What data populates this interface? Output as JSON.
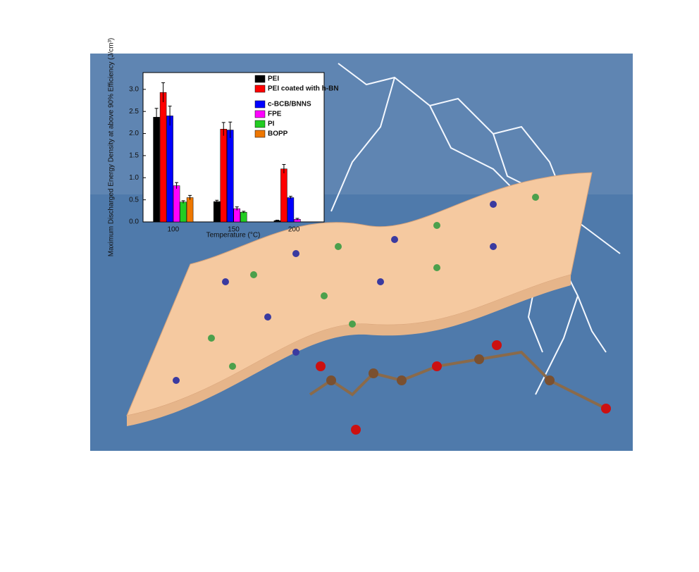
{
  "chart_data": {
    "type": "bar",
    "y_label": "Maximum Discharged Energy Density at above 90% Efficiency (J/cm³)",
    "x_label": "Temperature (°C)",
    "categories": [
      "100",
      "150",
      "200"
    ],
    "series": [
      {
        "name": "PEI",
        "color": "#000000",
        "values": [
          2.37,
          0.46,
          0.03
        ],
        "errors": [
          0.2,
          0.03,
          0.01
        ]
      },
      {
        "name": "PEI coated with h-BN",
        "color": "#ff0000",
        "values": [
          2.93,
          2.1,
          1.2
        ],
        "errors": [
          0.22,
          0.15,
          0.1
        ]
      },
      {
        "name": "c-BCB/BNNS",
        "color": "#0000ff",
        "values": [
          2.4,
          2.08,
          0.55
        ],
        "errors": [
          0.22,
          0.18,
          0.03
        ]
      },
      {
        "name": "FPE",
        "color": "#ff00ff",
        "values": [
          0.82,
          0.3,
          0.06
        ],
        "errors": [
          0.07,
          0.04,
          0.02
        ]
      },
      {
        "name": "PI",
        "color": "#22cc22",
        "values": [
          0.45,
          0.22,
          null
        ],
        "errors": [
          0.03,
          0.02,
          null
        ]
      },
      {
        "name": "BOPP",
        "color": "#ee7700",
        "values": [
          0.55,
          null,
          null
        ],
        "errors": [
          0.05,
          null,
          null
        ]
      }
    ],
    "ylim": [
      0,
      3.38
    ],
    "yticks": [
      {
        "value": 0,
        "label": "0.0"
      },
      {
        "value": 0.5,
        "label": "0.5"
      },
      {
        "value": 1,
        "label": "1.0"
      },
      {
        "value": 1.5,
        "label": "1.5"
      },
      {
        "value": 2,
        "label": "2.0"
      },
      {
        "value": 2.5,
        "label": "2.5"
      },
      {
        "value": 3,
        "label": "3.0"
      }
    ],
    "legend": "upper right"
  }
}
